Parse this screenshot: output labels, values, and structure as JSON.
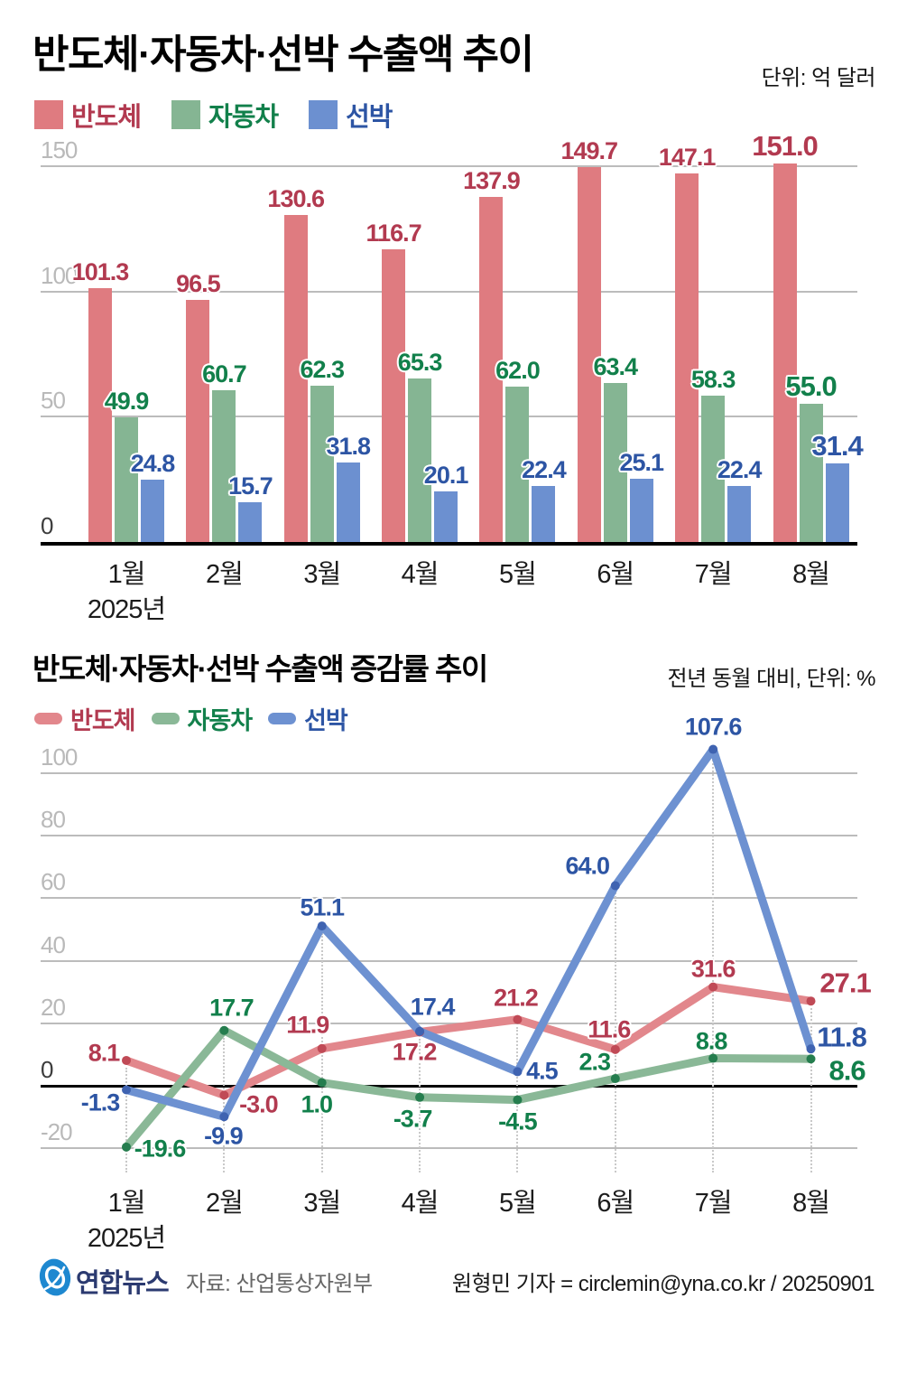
{
  "chart_data": [
    {
      "type": "bar",
      "title": "반도체·자동차·선박 수출액 추이",
      "unit_label": "단위: 억 달러",
      "year_label": "2025년",
      "categories": [
        "1월",
        "2월",
        "3월",
        "4월",
        "5월",
        "6월",
        "7월",
        "8월"
      ],
      "yticks": [
        150,
        100,
        50,
        0
      ],
      "ylim": [
        0,
        155
      ],
      "grid": true,
      "legend_position": "top-left",
      "series": [
        {
          "name": "반도체",
          "bar_color": "#df7b80",
          "text_color": "#b23a50",
          "values": [
            101.3,
            96.5,
            130.6,
            116.7,
            137.9,
            149.7,
            147.1,
            151.0
          ]
        },
        {
          "name": "자동차",
          "bar_color": "#85b593",
          "text_color": "#12804b",
          "values": [
            49.9,
            60.7,
            62.3,
            65.3,
            62.0,
            63.4,
            58.3,
            55.0
          ]
        },
        {
          "name": "선박",
          "bar_color": "#6c90d0",
          "text_color": "#2d55a4",
          "values": [
            24.8,
            15.7,
            31.8,
            20.1,
            22.4,
            25.1,
            22.4,
            31.4
          ]
        }
      ]
    },
    {
      "type": "line",
      "title": "반도체·자동차·선박 수출액 증감률 추이",
      "unit_label": "전년 동월 대비, 단위: %",
      "year_label": "2025년",
      "categories": [
        "1월",
        "2월",
        "3월",
        "4월",
        "5월",
        "6월",
        "7월",
        "8월"
      ],
      "yticks": [
        100,
        80,
        60,
        40,
        20,
        0,
        -20
      ],
      "ylim": [
        -25,
        112
      ],
      "grid": true,
      "legend_position": "top-left",
      "series": [
        {
          "name": "반도체",
          "line_color": "#e2878c",
          "point_color": "#c04a56",
          "text_color": "#b23a50",
          "values": [
            8.1,
            -3.0,
            11.9,
            17.2,
            21.2,
            11.6,
            31.6,
            27.1
          ]
        },
        {
          "name": "자동차",
          "line_color": "#8ab897",
          "point_color": "#257d4e",
          "text_color": "#12804b",
          "values": [
            -19.6,
            17.7,
            1.0,
            -3.7,
            -4.5,
            2.3,
            8.8,
            8.6
          ]
        },
        {
          "name": "선박",
          "line_color": "#6d91d1",
          "point_color": "#3f63b1",
          "text_color": "#2d55a4",
          "values": [
            -1.3,
            -9.9,
            51.1,
            17.4,
            4.5,
            64.0,
            107.6,
            11.8
          ]
        }
      ]
    }
  ],
  "footer": {
    "logo_text": "연합뉴스",
    "logo_color": "#1e88d0",
    "logo_text_color": "#2b3a70",
    "source": "자료: 산업통상자원부",
    "credit": "원형민 기자 = circlemin@yna.co.kr / 20250901"
  }
}
